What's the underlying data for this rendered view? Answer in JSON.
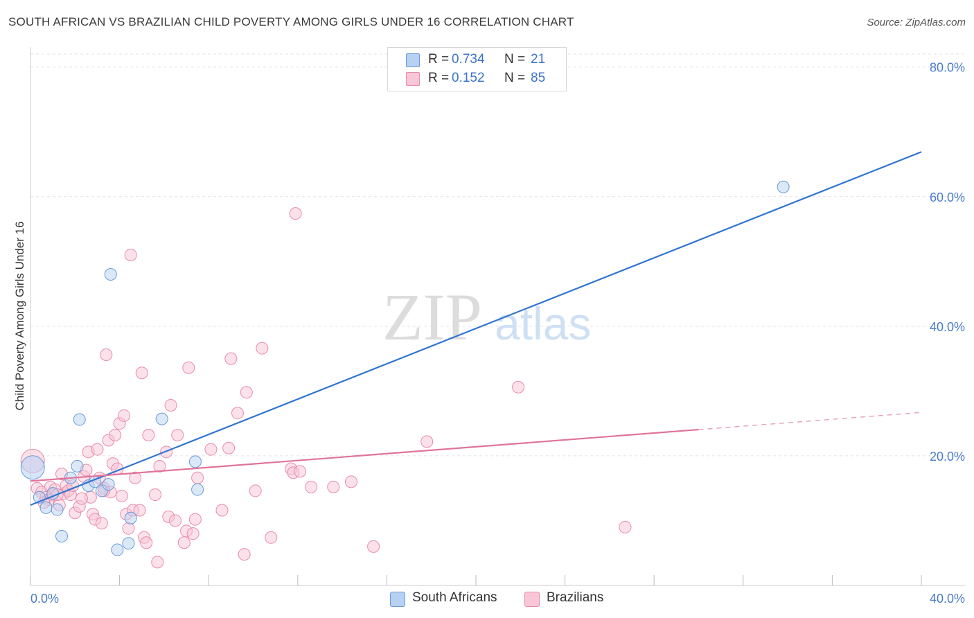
{
  "title": "SOUTH AFRICAN VS BRAZILIAN CHILD POVERTY AMONG GIRLS UNDER 16 CORRELATION CHART",
  "source": "Source: ZipAtlas.com",
  "watermark": {
    "zip": "ZIP",
    "atlas": "atlas"
  },
  "colors": {
    "south_african_fill": "#b7d1f2",
    "south_african_stroke": "#6a9ad8",
    "south_african_line": "#2f74d0",
    "brazilian_fill": "#f8c6d6",
    "brazilian_stroke": "#e88aaa",
    "brazilian_line": "#e0739a",
    "tick_text": "#4a7cc9",
    "grid": "#e2e2e2"
  },
  "legend": {
    "rows": [
      {
        "r_label": "R =",
        "r_value": "0.734",
        "n_label": "N =",
        "n_value": "21"
      },
      {
        "r_label": "R =",
        "r_value": "0.152",
        "n_label": "N =",
        "n_value": "85"
      }
    ]
  },
  "chart_data": {
    "type": "scatter",
    "title": "SOUTH AFRICAN VS BRAZILIAN CHILD POVERTY AMONG GIRLS UNDER 16 CORRELATION CHART",
    "xlabel": "",
    "ylabel": "Child Poverty Among Girls Under 16",
    "xlim": [
      0,
      40
    ],
    "ylim": [
      0,
      82
    ],
    "x_tick_labels": [
      "0.0%",
      "40.0%"
    ],
    "y_ticks": [
      20,
      40,
      60,
      80
    ],
    "y_tick_labels": [
      "20.0%",
      "40.0%",
      "60.0%",
      "80.0%"
    ],
    "grid": true,
    "legend_placement": "top-center",
    "series": [
      {
        "name": "South Africans",
        "r": 0.734,
        "n": 21,
        "trend": {
          "x": [
            0,
            40
          ],
          "y": [
            12.4,
            66.9
          ],
          "dashed_from": null
        },
        "points": [
          {
            "x": 0.1,
            "y": 18.2,
            "big": true
          },
          {
            "x": 0.4,
            "y": 13.6
          },
          {
            "x": 0.7,
            "y": 12.0
          },
          {
            "x": 1.2,
            "y": 11.7
          },
          {
            "x": 1.4,
            "y": 7.6
          },
          {
            "x": 1.8,
            "y": 16.6
          },
          {
            "x": 2.1,
            "y": 18.4
          },
          {
            "x": 2.2,
            "y": 25.6
          },
          {
            "x": 2.6,
            "y": 15.4
          },
          {
            "x": 2.9,
            "y": 16.0
          },
          {
            "x": 3.2,
            "y": 14.6
          },
          {
            "x": 3.5,
            "y": 15.6
          },
          {
            "x": 3.6,
            "y": 48.0
          },
          {
            "x": 3.9,
            "y": 5.5
          },
          {
            "x": 4.4,
            "y": 6.5
          },
          {
            "x": 4.5,
            "y": 10.4
          },
          {
            "x": 5.9,
            "y": 25.7
          },
          {
            "x": 7.4,
            "y": 19.1
          },
          {
            "x": 7.5,
            "y": 14.8
          },
          {
            "x": 1.0,
            "y": 14.2
          },
          {
            "x": 33.8,
            "y": 61.5
          }
        ]
      },
      {
        "name": "Brazilians",
        "r": 0.152,
        "n": 85,
        "trend": {
          "x": [
            0,
            40
          ],
          "y": [
            16.1,
            26.7
          ],
          "dashed_from": 30
        },
        "points": [
          {
            "x": 0.1,
            "y": 19.2,
            "big": true
          },
          {
            "x": 0.3,
            "y": 15.0
          },
          {
            "x": 0.5,
            "y": 14.4
          },
          {
            "x": 0.7,
            "y": 13.6
          },
          {
            "x": 0.9,
            "y": 15.2
          },
          {
            "x": 1.0,
            "y": 14.0
          },
          {
            "x": 1.1,
            "y": 14.8
          },
          {
            "x": 1.3,
            "y": 12.4
          },
          {
            "x": 1.4,
            "y": 17.2
          },
          {
            "x": 1.5,
            "y": 14.2
          },
          {
            "x": 1.6,
            "y": 15.4
          },
          {
            "x": 1.7,
            "y": 14.6
          },
          {
            "x": 1.8,
            "y": 14.0
          },
          {
            "x": 1.9,
            "y": 15.4
          },
          {
            "x": 2.0,
            "y": 11.2
          },
          {
            "x": 2.2,
            "y": 12.2
          },
          {
            "x": 2.4,
            "y": 16.8
          },
          {
            "x": 2.5,
            "y": 17.8
          },
          {
            "x": 2.6,
            "y": 20.6
          },
          {
            "x": 2.7,
            "y": 13.6
          },
          {
            "x": 2.8,
            "y": 11.0
          },
          {
            "x": 2.9,
            "y": 10.2
          },
          {
            "x": 3.0,
            "y": 21.0
          },
          {
            "x": 3.1,
            "y": 16.6
          },
          {
            "x": 3.2,
            "y": 9.6
          },
          {
            "x": 3.3,
            "y": 15.0
          },
          {
            "x": 3.4,
            "y": 35.6
          },
          {
            "x": 3.5,
            "y": 22.4
          },
          {
            "x": 3.6,
            "y": 14.4
          },
          {
            "x": 3.7,
            "y": 18.8
          },
          {
            "x": 3.8,
            "y": 23.2
          },
          {
            "x": 3.9,
            "y": 18.0
          },
          {
            "x": 4.0,
            "y": 25.0
          },
          {
            "x": 4.1,
            "y": 13.8
          },
          {
            "x": 4.2,
            "y": 26.2
          },
          {
            "x": 4.3,
            "y": 11.0
          },
          {
            "x": 4.4,
            "y": 8.8
          },
          {
            "x": 4.5,
            "y": 51.0
          },
          {
            "x": 4.6,
            "y": 11.6
          },
          {
            "x": 4.7,
            "y": 16.6
          },
          {
            "x": 4.9,
            "y": 11.6
          },
          {
            "x": 5.0,
            "y": 32.8
          },
          {
            "x": 5.1,
            "y": 7.4
          },
          {
            "x": 5.2,
            "y": 6.6
          },
          {
            "x": 5.3,
            "y": 23.2
          },
          {
            "x": 5.6,
            "y": 14.0
          },
          {
            "x": 5.7,
            "y": 3.6
          },
          {
            "x": 5.8,
            "y": 18.4
          },
          {
            "x": 6.1,
            "y": 20.6
          },
          {
            "x": 6.2,
            "y": 10.6
          },
          {
            "x": 6.3,
            "y": 27.8
          },
          {
            "x": 6.5,
            "y": 10.0
          },
          {
            "x": 6.6,
            "y": 23.2
          },
          {
            "x": 6.9,
            "y": 6.6
          },
          {
            "x": 7.0,
            "y": 8.4
          },
          {
            "x": 7.1,
            "y": 33.6
          },
          {
            "x": 7.3,
            "y": 8.0
          },
          {
            "x": 7.4,
            "y": 10.2
          },
          {
            "x": 7.5,
            "y": 16.6
          },
          {
            "x": 8.1,
            "y": 21.0
          },
          {
            "x": 8.6,
            "y": 11.6
          },
          {
            "x": 8.9,
            "y": 21.2
          },
          {
            "x": 9.0,
            "y": 35.0
          },
          {
            "x": 9.3,
            "y": 26.6
          },
          {
            "x": 9.6,
            "y": 4.8
          },
          {
            "x": 9.7,
            "y": 29.8
          },
          {
            "x": 10.1,
            "y": 14.6
          },
          {
            "x": 10.4,
            "y": 36.6
          },
          {
            "x": 10.8,
            "y": 7.4
          },
          {
            "x": 11.7,
            "y": 18.0
          },
          {
            "x": 11.8,
            "y": 17.4
          },
          {
            "x": 11.9,
            "y": 57.4
          },
          {
            "x": 12.1,
            "y": 17.6
          },
          {
            "x": 12.6,
            "y": 15.2
          },
          {
            "x": 13.6,
            "y": 15.2
          },
          {
            "x": 14.4,
            "y": 16.0
          },
          {
            "x": 15.4,
            "y": 6.0
          },
          {
            "x": 17.8,
            "y": 22.2
          },
          {
            "x": 21.9,
            "y": 30.6
          },
          {
            "x": 26.7,
            "y": 9.0
          },
          {
            "x": 0.8,
            "y": 13.2
          },
          {
            "x": 2.3,
            "y": 13.4
          },
          {
            "x": 1.2,
            "y": 14.0
          },
          {
            "x": 3.3,
            "y": 14.6
          },
          {
            "x": 0.6,
            "y": 12.8
          }
        ]
      }
    ]
  }
}
